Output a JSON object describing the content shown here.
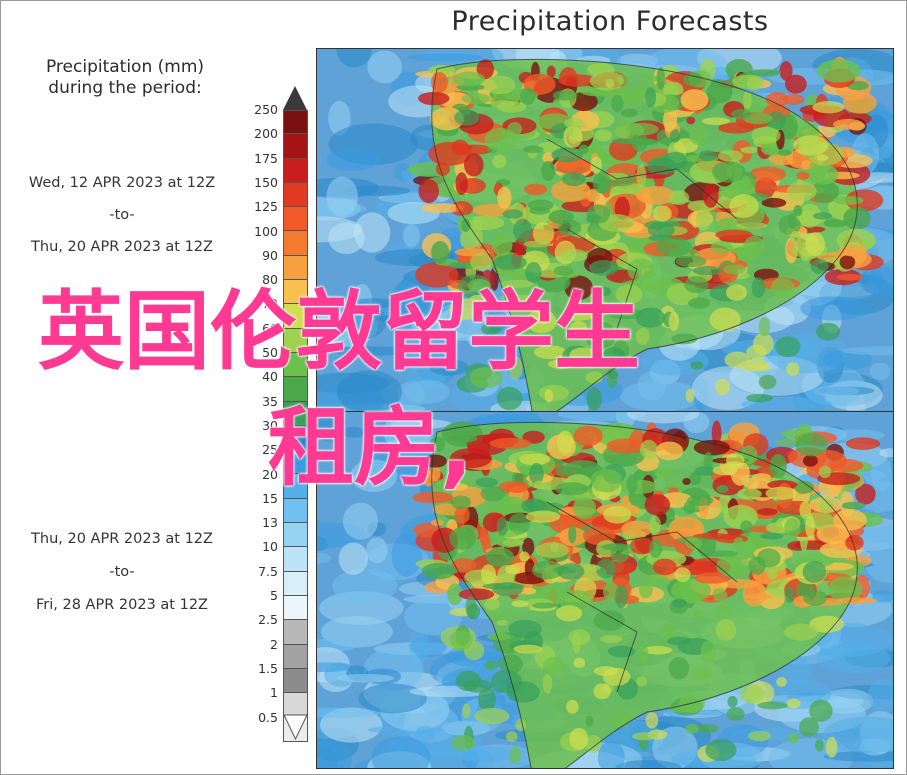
{
  "title": "Precipitation Forecasts",
  "legend": {
    "title_line1": "Precipitation (mm)",
    "title_line2": "during the period:",
    "ticks": [
      "250",
      "200",
      "175",
      "150",
      "125",
      "100",
      "90",
      "80",
      "70",
      "60",
      "50",
      "40",
      "35",
      "30",
      "25",
      "20",
      "15",
      "13",
      "10",
      "7.5",
      "5",
      "2.5",
      "2",
      "1.5",
      "1",
      "0.5"
    ],
    "colors": [
      "#7a1010",
      "#a41414",
      "#c81e1e",
      "#e03a20",
      "#f05a28",
      "#f47a30",
      "#f7a040",
      "#f9c050",
      "#d2de50",
      "#9ed250",
      "#6cc04c",
      "#4aa84a",
      "#38a05a",
      "#2a88c8",
      "#3a9ae0",
      "#54aee8",
      "#72c0ef",
      "#96d2f2",
      "#bde4f6",
      "#d8eff8",
      "#eaf6f9",
      "#b8b8b8",
      "#a2a2a2",
      "#8c8c8c",
      "#d8d8d8",
      "#ececec"
    ]
  },
  "periods": [
    {
      "start": "Wed, 12 APR 2023 at 12Z",
      "sep": "-to-",
      "end": "Thu, 20 APR 2023 at 12Z"
    },
    {
      "start": "Thu, 20 APR 2023 at 12Z",
      "sep": "-to-",
      "end": "Fri, 28 APR 2023 at 12Z"
    }
  ],
  "overlay": {
    "line1": "英国伦敦留学生",
    "line2": "租房,"
  },
  "maps": [
    {
      "name": "forecast-map-period-1"
    },
    {
      "name": "forecast-map-period-2"
    }
  ]
}
